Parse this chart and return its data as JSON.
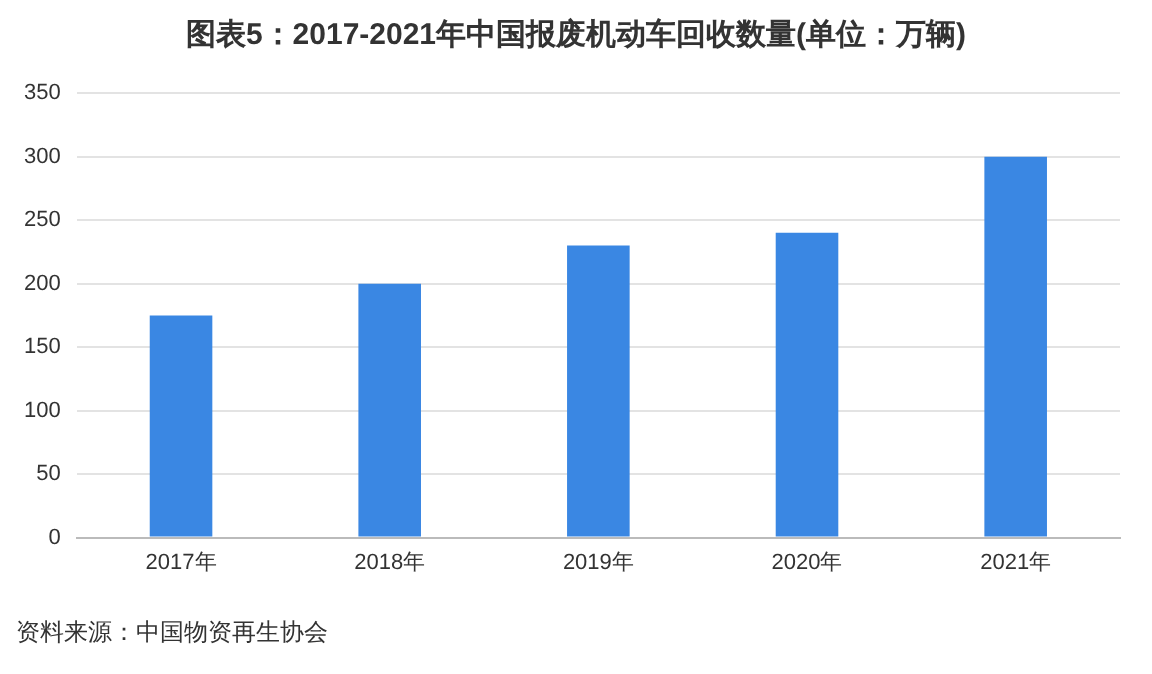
{
  "chart_data": {
    "type": "bar",
    "title": "图表5：2017-2021年中国报废机动车回收数量(单位：万辆)",
    "categories": [
      "2017年",
      "2018年",
      "2019年",
      "2020年",
      "2021年"
    ],
    "values": [
      175,
      200,
      230,
      240,
      300
    ],
    "color": "#3a87e3",
    "ylim": [
      0,
      350
    ],
    "yticks": [
      0,
      50,
      100,
      150,
      200,
      250,
      300,
      350
    ],
    "grid": "y",
    "legend": false,
    "annotations": [
      "资料来源：中国物资再生协会"
    ]
  }
}
